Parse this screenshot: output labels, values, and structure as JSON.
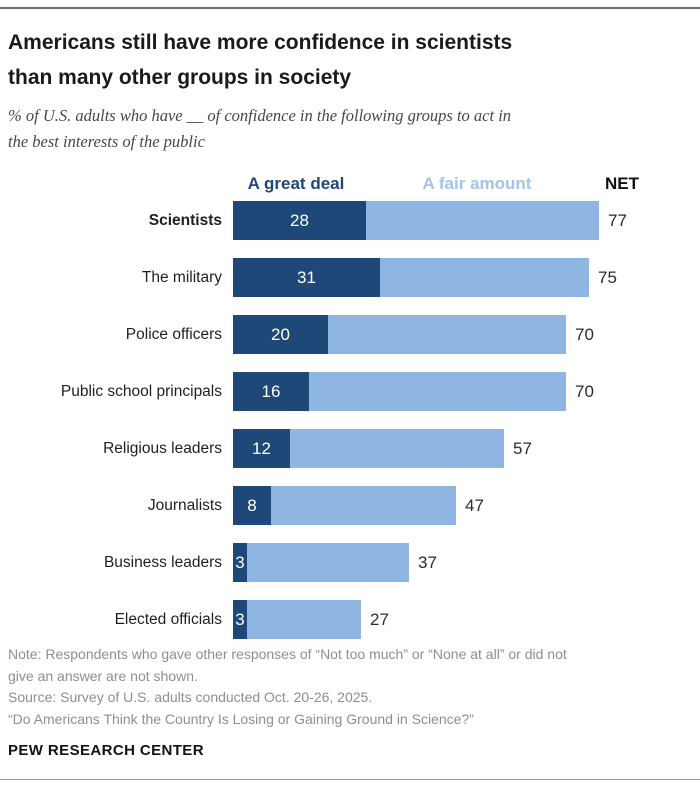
{
  "title": {
    "line1": "Americans still have more confidence in scientists",
    "line2": "than many other groups in society"
  },
  "subtitle": {
    "line1": "% of U.S. adults who have __ of confidence in the following groups to act in",
    "line2": "the best interests of the public"
  },
  "legend": {
    "great_deal": "A great deal",
    "fair_amount": "A fair amount",
    "net": "NET"
  },
  "chart_data": {
    "type": "bar",
    "orientation": "horizontal",
    "stacked": true,
    "xlim": [
      0,
      100
    ],
    "categories": [
      "Scientists",
      "The military",
      "Police officers",
      "Public school principals",
      "Religious leaders",
      "Journalists",
      "Business leaders",
      "Elected officials"
    ],
    "series": [
      {
        "name": "A great deal",
        "color": "#1e4878",
        "values": [
          28,
          31,
          20,
          16,
          12,
          8,
          3,
          3
        ]
      },
      {
        "name": "A fair amount",
        "color": "#8fb5e3",
        "values": [
          49,
          44,
          50,
          54,
          45,
          39,
          34,
          24
        ]
      }
    ],
    "net": [
      77,
      75,
      70,
      70,
      57,
      47,
      37,
      27
    ],
    "net_label": "NET",
    "highlighted_category": "Scientists",
    "legend_position": "top"
  },
  "colors": {
    "dark_blue": "#1e4878",
    "light_blue": "#8fb5e3",
    "legend_light_text": "#a5c3ea",
    "note_gray": "#8e8e8e"
  },
  "notes": {
    "line1": "Note: Respondents who gave other responses of “Not too much” or “None at all” or did not",
    "line2": "give an answer are not shown.",
    "source": "Source: Survey of U.S. adults conducted Oct. 20-26, 2025.",
    "citation": "“Do Americans Think the Country Is Losing or Gaining Ground in Science?”"
  },
  "footer": {
    "wordmark": "PEW RESEARCH CENTER"
  }
}
